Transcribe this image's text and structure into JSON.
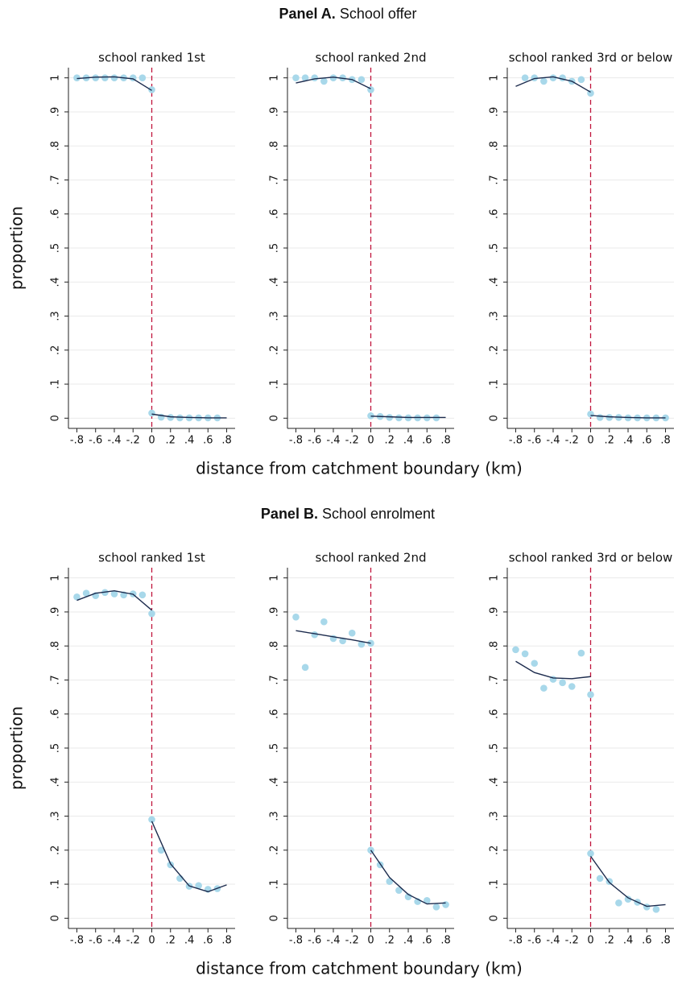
{
  "panels": [
    {
      "label": "Panel A.",
      "title": "School offer",
      "ylabel": "proportion",
      "xlabel": "distance from catchment boundary (km)"
    },
    {
      "label": "Panel B.",
      "title": "School enrolment",
      "ylabel": "proportion",
      "xlabel": "distance from catchment boundary (km)"
    }
  ],
  "chart_data": [
    {
      "type": "scatter",
      "title": "school ranked 1st",
      "xlim": [
        -0.89,
        0.89
      ],
      "ylim": [
        -0.03,
        1.03
      ],
      "grid": true,
      "xticks": [
        {
          "value": -0.8,
          "label": "-.8"
        },
        {
          "value": -0.6,
          "label": "-.6"
        },
        {
          "value": -0.4,
          "label": "-.4"
        },
        {
          "value": -0.2,
          "label": "-.2"
        },
        0,
        {
          "value": 0.2,
          "label": ".2"
        },
        {
          "value": 0.4,
          "label": ".4"
        },
        {
          "value": 0.6,
          "label": ".6"
        },
        {
          "value": 0.8,
          "label": ".8"
        }
      ],
      "yticks": [
        0,
        {
          "value": 0.1,
          "label": ".1"
        },
        {
          "value": 0.2,
          "label": ".2"
        },
        {
          "value": 0.3,
          "label": ".3"
        },
        {
          "value": 0.4,
          "label": ".4"
        },
        {
          "value": 0.5,
          "label": ".5"
        },
        {
          "value": 0.6,
          "label": ".6"
        },
        {
          "value": 0.7,
          "label": ".7"
        },
        {
          "value": 0.8,
          "label": ".8"
        },
        {
          "value": 0.9,
          "label": ".9"
        },
        1
      ],
      "vline": {
        "x": 0,
        "color": "#c0143c"
      },
      "series": [
        {
          "style": "markers",
          "color": "#a8d8ea",
          "x": [
            -0.8,
            -0.7,
            -0.6,
            -0.5,
            -0.4,
            -0.3,
            -0.2,
            -0.1,
            0,
            0,
            0.1,
            0.2,
            0.3,
            0.4,
            0.5,
            0.6,
            0.7
          ],
          "values": [
            1,
            1,
            1,
            1,
            1,
            1,
            1,
            1,
            0.965,
            0.015,
            0.003,
            0.002,
            0.001,
            0.001,
            0.001,
            0.001,
            0.001
          ]
        },
        {
          "style": "line",
          "color": "#1c2b4d",
          "x": [
            -0.8,
            -0.6,
            -0.4,
            -0.2,
            0,
            0,
            0,
            0.2,
            0.4,
            0.6,
            0.8
          ],
          "values": [
            0.998,
            1.002,
            1.003,
            0.997,
            0.963,
            null,
            0.012,
            0.004,
            0.002,
            0.001,
            0.001
          ]
        }
      ]
    },
    {
      "type": "scatter",
      "title": "school ranked 2nd",
      "xlim": [
        -0.89,
        0.89
      ],
      "ylim": [
        -0.03,
        1.03
      ],
      "grid": true,
      "xticks": [
        {
          "value": -0.8,
          "label": "-.8"
        },
        {
          "value": -0.6,
          "label": "-.6"
        },
        {
          "value": -0.4,
          "label": "-.4"
        },
        {
          "value": -0.2,
          "label": "-.2"
        },
        0,
        {
          "value": 0.2,
          "label": ".2"
        },
        {
          "value": 0.4,
          "label": ".4"
        },
        {
          "value": 0.6,
          "label": ".6"
        },
        {
          "value": 0.8,
          "label": ".8"
        }
      ],
      "yticks": [
        0,
        {
          "value": 0.1,
          "label": ".1"
        },
        {
          "value": 0.2,
          "label": ".2"
        },
        {
          "value": 0.3,
          "label": ".3"
        },
        {
          "value": 0.4,
          "label": ".4"
        },
        {
          "value": 0.5,
          "label": ".5"
        },
        {
          "value": 0.6,
          "label": ".6"
        },
        {
          "value": 0.7,
          "label": ".7"
        },
        {
          "value": 0.8,
          "label": ".8"
        },
        {
          "value": 0.9,
          "label": ".9"
        },
        1
      ],
      "vline": {
        "x": 0,
        "color": "#c0143c"
      },
      "series": [
        {
          "style": "markers",
          "color": "#a8d8ea",
          "x": [
            -0.8,
            -0.7,
            -0.6,
            -0.5,
            -0.4,
            -0.3,
            -0.2,
            -0.1,
            0,
            0,
            0.1,
            0.2,
            0.3,
            0.4,
            0.5,
            0.6,
            0.7
          ],
          "values": [
            1,
            1,
            1,
            0.99,
            1,
            1,
            0.995,
            0.995,
            0.965,
            0.007,
            0.005,
            0.002,
            0.001,
            0.001,
            0.001,
            0.001,
            0.001
          ]
        },
        {
          "style": "line",
          "color": "#1c2b4d",
          "x": [
            -0.8,
            -0.6,
            -0.4,
            -0.2,
            0,
            0,
            0,
            0.2,
            0.4,
            0.6,
            0.8
          ],
          "values": [
            0.985,
            0.997,
            1.002,
            0.995,
            0.968,
            null,
            0.006,
            0.004,
            0.002,
            0.002,
            0.002
          ]
        }
      ]
    },
    {
      "type": "scatter",
      "title": "school ranked 3rd or below",
      "xlim": [
        -0.89,
        0.89
      ],
      "ylim": [
        -0.03,
        1.03
      ],
      "grid": true,
      "xticks": [
        {
          "value": -0.8,
          "label": "-.8"
        },
        {
          "value": -0.6,
          "label": "-.6"
        },
        {
          "value": -0.4,
          "label": "-.4"
        },
        {
          "value": -0.2,
          "label": "-.2"
        },
        0,
        {
          "value": 0.2,
          "label": ".2"
        },
        {
          "value": 0.4,
          "label": ".4"
        },
        {
          "value": 0.6,
          "label": ".6"
        },
        {
          "value": 0.8,
          "label": ".8"
        }
      ],
      "yticks": [
        0,
        {
          "value": 0.1,
          "label": ".1"
        },
        {
          "value": 0.2,
          "label": ".2"
        },
        {
          "value": 0.3,
          "label": ".3"
        },
        {
          "value": 0.4,
          "label": ".4"
        },
        {
          "value": 0.5,
          "label": ".5"
        },
        {
          "value": 0.6,
          "label": ".6"
        },
        {
          "value": 0.7,
          "label": ".7"
        },
        {
          "value": 0.8,
          "label": ".8"
        },
        {
          "value": 0.9,
          "label": ".9"
        },
        1
      ],
      "vline": {
        "x": 0,
        "color": "#c0143c"
      },
      "series": [
        {
          "style": "markers",
          "color": "#a8d8ea",
          "x": [
            -0.7,
            -0.6,
            -0.5,
            -0.4,
            -0.3,
            -0.2,
            -0.1,
            0,
            0,
            0.1,
            0.2,
            0.3,
            0.4,
            0.5,
            0.6,
            0.7,
            0.8
          ],
          "values": [
            1,
            1,
            0.99,
            1,
            1,
            0.99,
            0.995,
            0.955,
            0.012,
            0.002,
            0.002,
            0.002,
            0.001,
            0.001,
            0.001,
            0.001,
            0.001
          ]
        },
        {
          "style": "line",
          "color": "#1c2b4d",
          "x": [
            -0.8,
            -0.6,
            -0.4,
            -0.2,
            0,
            0,
            0,
            0.2,
            0.4,
            0.6,
            0.8
          ],
          "values": [
            0.975,
            0.998,
            1.003,
            0.99,
            0.958,
            null,
            0.008,
            0.004,
            0.002,
            0.001,
            0.001
          ]
        }
      ]
    },
    {
      "type": "scatter",
      "title": "school ranked 1st",
      "xlim": [
        -0.89,
        0.89
      ],
      "ylim": [
        -0.03,
        1.03
      ],
      "grid": true,
      "xticks": [
        {
          "value": -0.8,
          "label": "-.8"
        },
        {
          "value": -0.6,
          "label": "-.6"
        },
        {
          "value": -0.4,
          "label": "-.4"
        },
        {
          "value": -0.2,
          "label": "-.2"
        },
        0,
        {
          "value": 0.2,
          "label": ".2"
        },
        {
          "value": 0.4,
          "label": ".4"
        },
        {
          "value": 0.6,
          "label": ".6"
        },
        {
          "value": 0.8,
          "label": ".8"
        }
      ],
      "yticks": [
        0,
        {
          "value": 0.1,
          "label": ".1"
        },
        {
          "value": 0.2,
          "label": ".2"
        },
        {
          "value": 0.3,
          "label": ".3"
        },
        {
          "value": 0.4,
          "label": ".4"
        },
        {
          "value": 0.5,
          "label": ".5"
        },
        {
          "value": 0.6,
          "label": ".6"
        },
        {
          "value": 0.7,
          "label": ".7"
        },
        {
          "value": 0.8,
          "label": ".8"
        },
        {
          "value": 0.9,
          "label": ".9"
        },
        1
      ],
      "vline": {
        "x": 0,
        "color": "#c0143c"
      },
      "series": [
        {
          "style": "markers",
          "color": "#a8d8ea",
          "x": [
            -0.8,
            -0.7,
            -0.6,
            -0.5,
            -0.4,
            -0.3,
            -0.2,
            -0.1,
            0,
            0,
            0.1,
            0.2,
            0.3,
            0.4,
            0.5,
            0.6,
            0.7
          ],
          "values": [
            0.944,
            0.955,
            0.948,
            0.957,
            0.953,
            0.95,
            0.953,
            0.95,
            0.895,
            0.29,
            0.2,
            0.157,
            0.117,
            0.094,
            0.096,
            0.085,
            0.087
          ]
        },
        {
          "style": "line",
          "color": "#1c2b4d",
          "x": [
            -0.8,
            -0.6,
            -0.4,
            -0.2,
            0,
            0,
            0,
            0.2,
            0.4,
            0.6,
            0.8
          ],
          "values": [
            0.934,
            0.955,
            0.962,
            0.952,
            0.905,
            null,
            0.285,
            0.16,
            0.095,
            0.078,
            0.098
          ]
        }
      ]
    },
    {
      "type": "scatter",
      "title": "school ranked 2nd",
      "xlim": [
        -0.89,
        0.89
      ],
      "ylim": [
        -0.03,
        1.03
      ],
      "grid": true,
      "xticks": [
        {
          "value": -0.8,
          "label": "-.8"
        },
        {
          "value": -0.6,
          "label": "-.6"
        },
        {
          "value": -0.4,
          "label": "-.4"
        },
        {
          "value": -0.2,
          "label": "-.2"
        },
        0,
        {
          "value": 0.2,
          "label": ".2"
        },
        {
          "value": 0.4,
          "label": ".4"
        },
        {
          "value": 0.6,
          "label": ".6"
        },
        {
          "value": 0.8,
          "label": ".8"
        }
      ],
      "yticks": [
        0,
        {
          "value": 0.1,
          "label": ".1"
        },
        {
          "value": 0.2,
          "label": ".2"
        },
        {
          "value": 0.3,
          "label": ".3"
        },
        {
          "value": 0.4,
          "label": ".4"
        },
        {
          "value": 0.5,
          "label": ".5"
        },
        {
          "value": 0.6,
          "label": ".6"
        },
        {
          "value": 0.7,
          "label": ".7"
        },
        {
          "value": 0.8,
          "label": ".8"
        },
        {
          "value": 0.9,
          "label": ".9"
        },
        1
      ],
      "vline": {
        "x": 0,
        "color": "#c0143c"
      },
      "series": [
        {
          "style": "markers",
          "color": "#a8d8ea",
          "x": [
            -0.8,
            -0.7,
            -0.6,
            -0.5,
            -0.4,
            -0.3,
            -0.2,
            -0.1,
            0,
            0,
            0.1,
            0.2,
            0.3,
            0.4,
            0.5,
            0.6,
            0.7,
            0.8
          ],
          "values": [
            0.885,
            0.737,
            0.833,
            0.871,
            0.822,
            0.815,
            0.838,
            0.805,
            0.808,
            0.2,
            0.157,
            0.108,
            0.082,
            0.063,
            0.049,
            0.052,
            0.033,
            0.04
          ]
        },
        {
          "style": "line",
          "color": "#1c2b4d",
          "x": [
            -0.8,
            -0.6,
            -0.4,
            -0.2,
            0,
            0,
            0,
            0.2,
            0.4,
            0.6,
            0.8
          ],
          "values": [
            0.845,
            0.836,
            0.827,
            0.818,
            0.808,
            null,
            0.2,
            0.12,
            0.07,
            0.042,
            0.045
          ]
        }
      ]
    },
    {
      "type": "scatter",
      "title": "school ranked 3rd or below",
      "xlim": [
        -0.89,
        0.89
      ],
      "ylim": [
        -0.03,
        1.03
      ],
      "grid": true,
      "xticks": [
        {
          "value": -0.8,
          "label": "-.8"
        },
        {
          "value": -0.6,
          "label": "-.6"
        },
        {
          "value": -0.4,
          "label": "-.4"
        },
        {
          "value": -0.2,
          "label": "-.2"
        },
        0,
        {
          "value": 0.2,
          "label": ".2"
        },
        {
          "value": 0.4,
          "label": ".4"
        },
        {
          "value": 0.6,
          "label": ".6"
        },
        {
          "value": 0.8,
          "label": ".8"
        }
      ],
      "yticks": [
        0,
        {
          "value": 0.1,
          "label": ".1"
        },
        {
          "value": 0.2,
          "label": ".2"
        },
        {
          "value": 0.3,
          "label": ".3"
        },
        {
          "value": 0.4,
          "label": ".4"
        },
        {
          "value": 0.5,
          "label": ".5"
        },
        {
          "value": 0.6,
          "label": ".6"
        },
        {
          "value": 0.7,
          "label": ".7"
        },
        {
          "value": 0.8,
          "label": ".8"
        },
        {
          "value": 0.9,
          "label": ".9"
        },
        1
      ],
      "vline": {
        "x": 0,
        "color": "#c0143c"
      },
      "series": [
        {
          "style": "markers",
          "color": "#a8d8ea",
          "x": [
            -0.8,
            -0.7,
            -0.6,
            -0.5,
            -0.4,
            -0.3,
            -0.2,
            -0.1,
            0,
            0,
            0.1,
            0.2,
            0.3,
            0.4,
            0.5,
            0.6,
            0.7
          ],
          "values": [
            0.789,
            0.777,
            0.749,
            0.676,
            0.702,
            0.692,
            0.681,
            0.779,
            0.657,
            0.19,
            0.117,
            0.108,
            0.045,
            0.056,
            0.047,
            0.033,
            0.026
          ]
        },
        {
          "style": "line",
          "color": "#1c2b4d",
          "x": [
            -0.8,
            -0.6,
            -0.4,
            -0.2,
            0,
            0,
            0,
            0.2,
            0.4,
            0.6,
            0.8
          ],
          "values": [
            0.755,
            0.722,
            0.706,
            0.704,
            0.71,
            null,
            0.182,
            0.105,
            0.06,
            0.035,
            0.04
          ]
        }
      ]
    }
  ]
}
